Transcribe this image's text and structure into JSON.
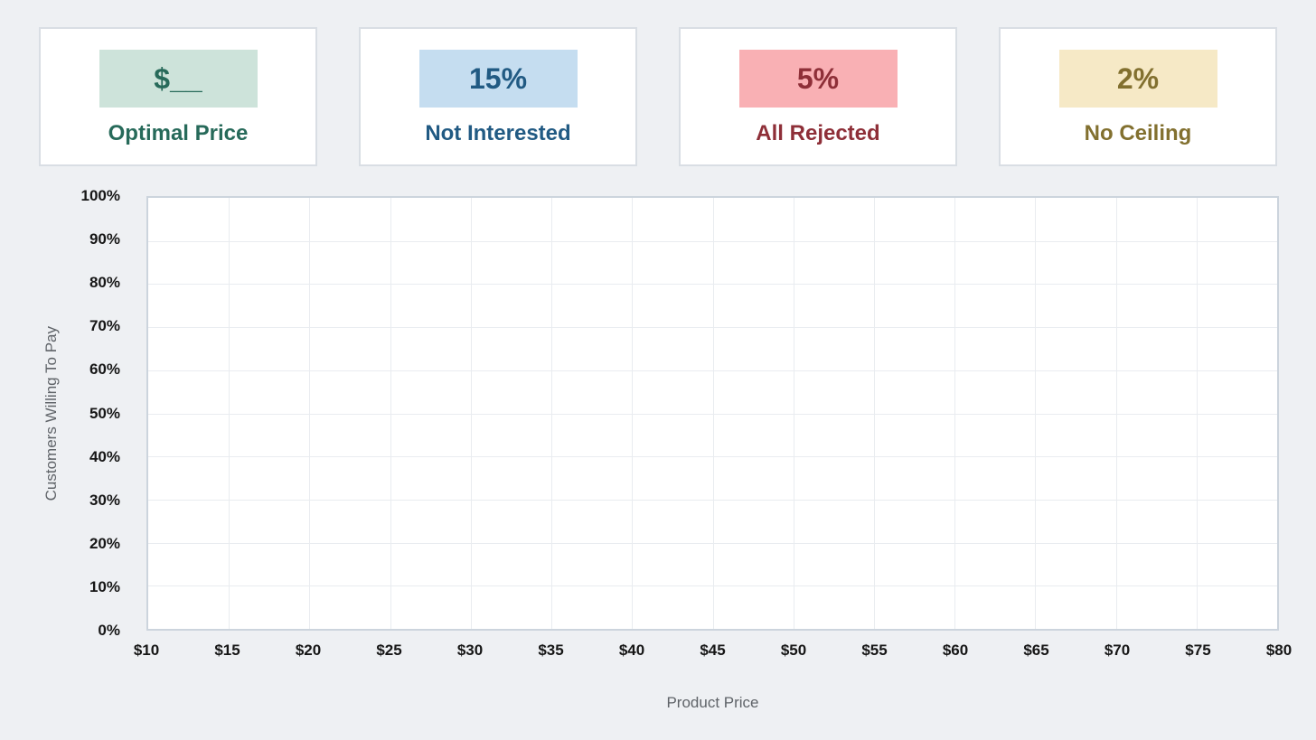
{
  "colors": {
    "page_bg": "#eef0f3",
    "card_bg": "#ffffff",
    "card_border": "#d9dee4",
    "plot_bg": "#ffffff",
    "plot_border": "#ccd4dd",
    "gridline": "#e9ecf0",
    "tick_text": "#161616",
    "axis_title_text": "#5f6368"
  },
  "cards": [
    {
      "value": "$__",
      "label": "Optimal Price",
      "badge_bg": "#cde3da",
      "text_color": "#276a5a"
    },
    {
      "value": "15%",
      "label": "Not Interested",
      "badge_bg": "#c5ddf0",
      "text_color": "#215a83"
    },
    {
      "value": "5%",
      "label": "All Rejected",
      "badge_bg": "#f9b0b4",
      "text_color": "#8e2f38"
    },
    {
      "value": "2%",
      "label": "No Ceiling",
      "badge_bg": "#f6e9c6",
      "text_color": "#82702f"
    }
  ],
  "chart_data": {
    "type": "line",
    "title": "",
    "xlabel": "Product Price",
    "ylabel": "Customers Willing To Pay",
    "xlim": [
      10,
      80
    ],
    "ylim": [
      0,
      100
    ],
    "x_tick_step": 5,
    "y_tick_step": 10,
    "x_ticks": [
      "$10",
      "$15",
      "$20",
      "$25",
      "$30",
      "$35",
      "$40",
      "$45",
      "$50",
      "$55",
      "$60",
      "$65",
      "$70",
      "$75",
      "$80"
    ],
    "y_ticks": [
      "0%",
      "10%",
      "20%",
      "30%",
      "40%",
      "50%",
      "60%",
      "70%",
      "80%",
      "90%",
      "100%"
    ],
    "grid": true,
    "legend": false,
    "series": []
  }
}
